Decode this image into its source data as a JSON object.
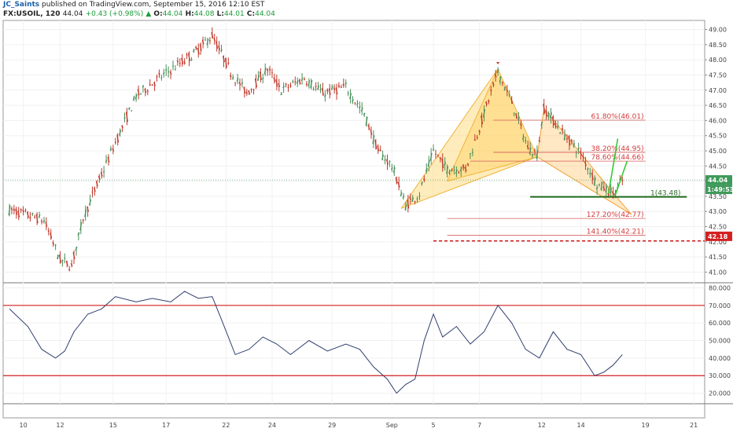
{
  "header": {
    "author": "JC_Saints",
    "published": "published on TradingView.com, September 15, 2016 12:10 EST",
    "symbol": "FX:USOIL, 120",
    "last": "44.04",
    "change": "+0.43 (+0.98%)",
    "open_label": "O:",
    "open": "44.04",
    "high_label": "H:",
    "high": "44.08",
    "low_label": "L:",
    "low": "44.01",
    "close_label": "C:",
    "close": "44.04"
  },
  "chart_data": [
    {
      "type": "line",
      "name": "price",
      "ylim": [
        40.7,
        49.3
      ],
      "y_ticks": [
        "41.00",
        "41.50",
        "42.00",
        "42.50",
        "43.00",
        "43.50",
        "44.00",
        "44.50",
        "45.00",
        "45.50",
        "46.00",
        "46.50",
        "47.00",
        "47.50",
        "48.00",
        "48.50",
        "49.00"
      ],
      "x_ticks": [
        "10",
        "12",
        "15",
        "17",
        "22",
        "24",
        "29",
        "Sep",
        "5",
        "7",
        "12",
        "14",
        "19",
        "21"
      ],
      "x_tick_index": [
        6,
        22,
        45,
        68,
        94,
        114,
        140,
        166,
        184,
        204,
        231,
        248,
        276,
        297
      ],
      "n_bars": 300,
      "price_path": [
        [
          0,
          43.05
        ],
        [
          15,
          42.7
        ],
        [
          22,
          41.4
        ],
        [
          27,
          41.2
        ],
        [
          32,
          42.8
        ],
        [
          45,
          45.1
        ],
        [
          55,
          46.8
        ],
        [
          65,
          47.4
        ],
        [
          80,
          48.2
        ],
        [
          88,
          48.8
        ],
        [
          96,
          47.6
        ],
        [
          103,
          46.9
        ],
        [
          112,
          47.7
        ],
        [
          118,
          47.0
        ],
        [
          128,
          47.4
        ],
        [
          136,
          46.9
        ],
        [
          146,
          47.1
        ],
        [
          154,
          46.2
        ],
        [
          160,
          45.0
        ],
        [
          166,
          44.5
        ],
        [
          172,
          43.2
        ],
        [
          178,
          43.6
        ],
        [
          184,
          45.0
        ],
        [
          190,
          44.4
        ],
        [
          198,
          44.4
        ],
        [
          205,
          46.0
        ],
        [
          212,
          47.6
        ],
        [
          218,
          46.6
        ],
        [
          225,
          45.1
        ],
        [
          229,
          44.9
        ],
        [
          232,
          46.4
        ],
        [
          240,
          45.6
        ],
        [
          248,
          44.9
        ],
        [
          255,
          43.9
        ],
        [
          262,
          43.6
        ],
        [
          266,
          44.0
        ]
      ],
      "last_price": 44.04,
      "price_tag": "44.04",
      "countdown_tag": "1:49:53",
      "target_tag": "42.18",
      "target_price": 42.18,
      "fib_levels": [
        {
          "label": "61.80%(46.01)",
          "price": 46.01,
          "x0": 210,
          "x1": 276
        },
        {
          "label": "38.20%(44.95)",
          "price": 44.95,
          "x0": 210,
          "x1": 276
        },
        {
          "label": "78.60%(44.66)",
          "price": 44.66,
          "x0": 200,
          "x1": 276
        },
        {
          "label": "1(43.48)",
          "price": 43.48,
          "x0": 226,
          "x1": 292
        },
        {
          "label": "127.20%(42.77)",
          "price": 42.77,
          "x0": 190,
          "x1": 276
        },
        {
          "label": "141.40%(42.21)",
          "price": 42.21,
          "x0": 190,
          "x1": 276
        }
      ],
      "harmonic_1": {
        "fill": [
          [
            [
              170,
              43.1
            ],
            [
              212,
              47.7
            ],
            [
              229,
              44.8
            ]
          ],
          [
            [
              190,
              44.0
            ],
            [
              212,
              47.7
            ],
            [
              229,
              44.8
            ]
          ]
        ],
        "lines": [
          [
            [
              170,
              43.1
            ],
            [
              212,
              47.7
            ]
          ],
          [
            [
              212,
              47.7
            ],
            [
              229,
              44.8
            ]
          ],
          [
            [
              229,
              44.8
            ],
            [
              190,
              44.0
            ]
          ],
          [
            [
              190,
              44.0
            ],
            [
              212,
              47.7
            ]
          ],
          [
            [
              170,
              43.1
            ],
            [
              229,
              44.8
            ]
          ]
        ]
      },
      "harmonic_2": {
        "fill": [
          [
            [
              229,
              44.8
            ],
            [
              232,
              46.4
            ],
            [
              270,
              42.9
            ]
          ],
          [
            [
              232,
              46.4
            ],
            [
              262,
              43.6
            ],
            [
              270,
              42.9
            ]
          ]
        ],
        "lines": [
          [
            [
              229,
              44.8
            ],
            [
              232,
              46.4
            ]
          ],
          [
            [
              232,
              46.4
            ],
            [
              262,
              43.6
            ]
          ],
          [
            [
              262,
              43.6
            ],
            [
              270,
              42.9
            ]
          ],
          [
            [
              229,
              44.8
            ],
            [
              270,
              42.9
            ]
          ]
        ]
      },
      "green_arrow": [
        [
          260,
          43.6
        ],
        [
          264,
          45.4
        ]
      ],
      "support_line": {
        "price": 43.48,
        "x0": 226,
        "x1": 294
      }
    },
    {
      "type": "line",
      "name": "oscillator",
      "ylim": [
        14,
        82
      ],
      "y_ticks": [
        "20.000",
        "30.000",
        "40.000",
        "50.000",
        "60.000",
        "70.000",
        "80.000"
      ],
      "bands": [
        70,
        30
      ],
      "path": [
        [
          0,
          68
        ],
        [
          8,
          58
        ],
        [
          14,
          45
        ],
        [
          20,
          40
        ],
        [
          24,
          44
        ],
        [
          28,
          55
        ],
        [
          34,
          65
        ],
        [
          40,
          68
        ],
        [
          46,
          75
        ],
        [
          55,
          72
        ],
        [
          62,
          74
        ],
        [
          70,
          72
        ],
        [
          76,
          78
        ],
        [
          82,
          74
        ],
        [
          88,
          75
        ],
        [
          92,
          62
        ],
        [
          98,
          42
        ],
        [
          104,
          45
        ],
        [
          110,
          52
        ],
        [
          116,
          48
        ],
        [
          122,
          42
        ],
        [
          130,
          50
        ],
        [
          138,
          44
        ],
        [
          146,
          48
        ],
        [
          152,
          45
        ],
        [
          158,
          35
        ],
        [
          164,
          28
        ],
        [
          168,
          20
        ],
        [
          172,
          25
        ],
        [
          176,
          28
        ],
        [
          180,
          50
        ],
        [
          184,
          65
        ],
        [
          188,
          52
        ],
        [
          194,
          58
        ],
        [
          200,
          48
        ],
        [
          206,
          55
        ],
        [
          212,
          70
        ],
        [
          218,
          60
        ],
        [
          224,
          45
        ],
        [
          230,
          40
        ],
        [
          236,
          55
        ],
        [
          242,
          45
        ],
        [
          248,
          42
        ],
        [
          254,
          30
        ],
        [
          258,
          32
        ],
        [
          262,
          36
        ],
        [
          266,
          42
        ]
      ]
    }
  ]
}
